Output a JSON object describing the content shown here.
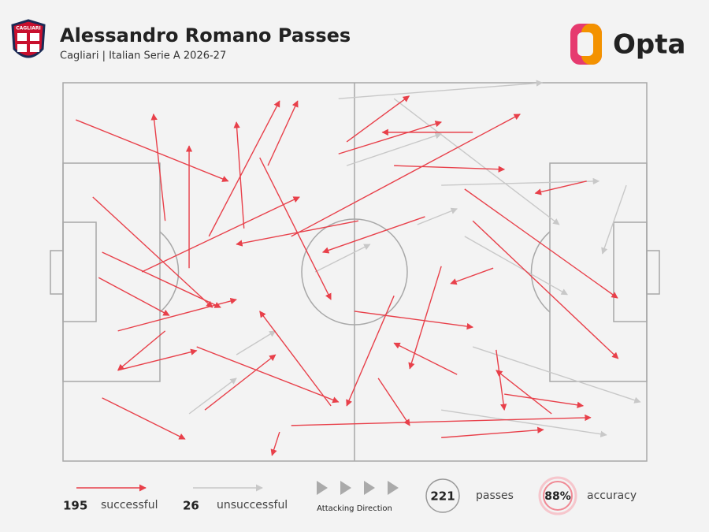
{
  "chart_data": {
    "type": "pass-map",
    "title": "Alessandro Romano Passes",
    "subtitle": "Cagliari | Italian Serie A 2026-27",
    "badge_text": "CAGLIARI",
    "brand": "Opta",
    "xlim": [
      0,
      100
    ],
    "ylim": [
      0,
      100
    ],
    "direction_label": "Attacking Direction",
    "series": [
      {
        "name": "successful",
        "count": 195,
        "color": "#e8404a",
        "passes": [
          [
            2.2,
            9.8,
            28.3,
            26.0
          ],
          [
            6.7,
            83.3,
            20.9,
            94.2
          ],
          [
            5.1,
            30.2,
            25.6,
            59.4
          ],
          [
            6.1,
            51.5,
            18.2,
            61.5
          ],
          [
            9.4,
            76.0,
            22.9,
            70.8
          ],
          [
            17.5,
            36.5,
            15.5,
            8.3
          ],
          [
            25.0,
            40.6,
            37.1,
            4.8
          ],
          [
            48.6,
            15.6,
            59.3,
            3.5
          ],
          [
            70.2,
            13.1,
            54.7,
            13.1
          ],
          [
            39.1,
            40.6,
            78.3,
            8.3
          ],
          [
            68.8,
            28.1,
            95.0,
            56.9
          ],
          [
            70.2,
            36.5,
            95.1,
            72.9
          ],
          [
            39.1,
            90.6,
            90.4,
            88.5
          ],
          [
            64.8,
            93.8,
            82.3,
            91.7
          ],
          [
            89.7,
            26.0,
            80.9,
            29.2
          ],
          [
            75.6,
            82.3,
            89.1,
            85.4
          ],
          [
            22.9,
            69.8,
            47.2,
            84.4
          ],
          [
            37.1,
            92.3,
            35.8,
            98.5
          ],
          [
            31.0,
            38.5,
            29.7,
            10.4
          ],
          [
            21.6,
            49.0,
            21.6,
            16.7
          ],
          [
            9.4,
            65.6,
            29.7,
            57.3
          ],
          [
            54.0,
            78.1,
            59.4,
            90.6
          ],
          [
            74.2,
            70.6,
            75.6,
            86.5
          ],
          [
            49.9,
            60.4,
            70.2,
            64.6
          ],
          [
            62.0,
            35.4,
            44.5,
            44.8
          ],
          [
            6.7,
            44.8,
            27.0,
            59.4
          ],
          [
            35.1,
            21.9,
            40.2,
            4.8
          ],
          [
            24.3,
            86.5,
            36.4,
            71.9
          ],
          [
            64.8,
            48.5,
            59.4,
            75.6
          ],
          [
            73.7,
            49.0,
            66.4,
            53.1
          ],
          [
            33.7,
            19.8,
            45.9,
            57.3
          ],
          [
            83.7,
            87.5,
            74.2,
            76.0
          ],
          [
            56.7,
            21.9,
            75.6,
            22.9
          ],
          [
            45.9,
            85.4,
            33.7,
            60.4
          ],
          [
            67.5,
            77.1,
            56.7,
            68.8
          ],
          [
            17.5,
            65.6,
            9.4,
            76.0
          ],
          [
            56.7,
            56.3,
            48.6,
            85.4
          ],
          [
            50.6,
            36.5,
            29.7,
            42.7
          ],
          [
            47.2,
            18.8,
            64.8,
            10.4
          ],
          [
            13.5,
            50.0,
            40.5,
            30.2
          ]
        ]
      },
      {
        "name": "unsuccessful",
        "count": 26,
        "color": "#c8c8c8",
        "passes": [
          [
            47.2,
            4.2,
            82.1,
            0.0
          ],
          [
            56.7,
            4.2,
            85.0,
            37.5
          ],
          [
            96.5,
            27.1,
            92.4,
            45.2
          ],
          [
            64.8,
            27.1,
            91.8,
            26.0
          ],
          [
            68.8,
            40.6,
            86.4,
            56.0
          ],
          [
            70.2,
            69.8,
            98.9,
            84.4
          ],
          [
            21.6,
            87.5,
            29.7,
            78.1
          ],
          [
            64.8,
            86.5,
            93.1,
            93.1
          ],
          [
            48.6,
            21.9,
            64.8,
            13.5
          ],
          [
            43.2,
            50.0,
            52.6,
            42.7
          ],
          [
            29.7,
            71.9,
            36.4,
            65.6
          ],
          [
            60.7,
            37.5,
            67.5,
            33.3
          ]
        ]
      }
    ],
    "stats": {
      "passes": {
        "value": 221,
        "label": "passes"
      },
      "accuracy": {
        "value": 88,
        "value_label": "88%",
        "label": "accuracy"
      }
    }
  }
}
